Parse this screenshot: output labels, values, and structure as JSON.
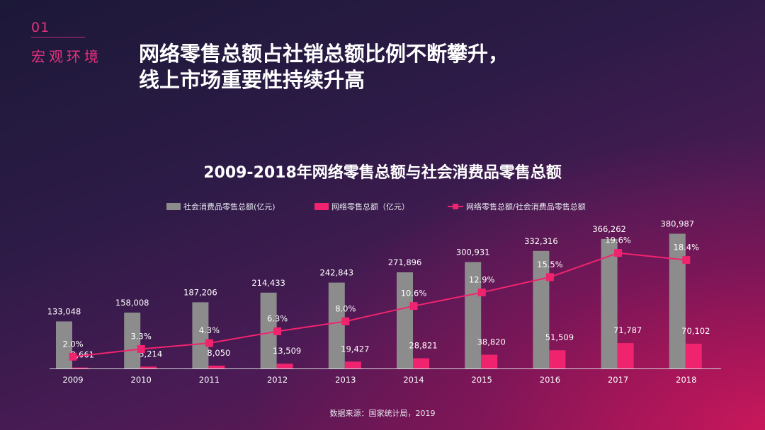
{
  "section": {
    "number": "01",
    "label": "宏观环境"
  },
  "headline": {
    "line1": "网络零售总额占社销总额比例不断攀升，",
    "line2": "线上市场重要性持续升高"
  },
  "source": "数据来源：国家统计局，2019",
  "colors": {
    "social_bar": "#8c8c8c",
    "online_bar": "#f0246e",
    "ratio_line": "#f0246e"
  },
  "chart_data": {
    "type": "bar",
    "title": "2009-2018年网络零售总额与社会消费品零售总额",
    "categories": [
      "2009",
      "2010",
      "2011",
      "2012",
      "2013",
      "2014",
      "2015",
      "2016",
      "2017",
      "2018"
    ],
    "series": [
      {
        "name": "社会消费品零售总额(亿元)",
        "type": "bar",
        "values": [
          133048,
          158008,
          187206,
          214433,
          242843,
          271896,
          300931,
          332316,
          366262,
          380987
        ],
        "labels": [
          "133,048",
          "158,008",
          "187,206",
          "214,433",
          "242,843",
          "271,896",
          "300,931",
          "332,316",
          "366,262",
          "380,987"
        ]
      },
      {
        "name": "网络零售总额（亿元）",
        "type": "bar",
        "values": [
          2661,
          5214,
          8050,
          13509,
          19427,
          28821,
          38820,
          51509,
          71787,
          70102
        ],
        "labels": [
          "2,661",
          "5,214",
          "8,050",
          "13,509",
          "19,427",
          "28,821",
          "38,820",
          "51,509",
          "71,787",
          "70,102"
        ]
      },
      {
        "name": "网络零售总额/社会消费品零售总额",
        "type": "line",
        "values": [
          2.0,
          3.3,
          4.3,
          6.3,
          8.0,
          10.6,
          12.9,
          15.5,
          19.6,
          18.4
        ],
        "labels": [
          "2.0%",
          "3.3%",
          "4.3%",
          "6.3%",
          "8.0%",
          "10.6%",
          "12.9%",
          "15.5%",
          "19.6%",
          "18.4%"
        ]
      }
    ],
    "bar_ylim": [
      0,
      400000
    ],
    "line_ylim": [
      0,
      24
    ],
    "legend_position": "top",
    "grid": false
  }
}
